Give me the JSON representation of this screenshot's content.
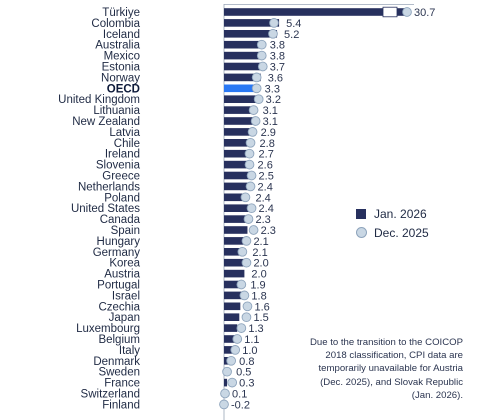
{
  "chart_data": {
    "type": "bar",
    "orientation": "horizontal",
    "categories": [
      "Türkiye",
      "Colombia",
      "Iceland",
      "Australia",
      "Mexico",
      "Estonia",
      "Norway",
      "OECD",
      "United Kingdom",
      "Lithuania",
      "New Zealand",
      "Latvia",
      "Chile",
      "Ireland",
      "Slovenia",
      "Greece",
      "Netherlands",
      "Poland",
      "United States",
      "Canada",
      "Spain",
      "Hungary",
      "Germany",
      "Korea",
      "Austria",
      "Portugal",
      "Israel",
      "Czechia",
      "Japan",
      "Luxembourg",
      "Belgium",
      "Italy",
      "Denmark",
      "Sweden",
      "France",
      "Switzerland",
      "Finland"
    ],
    "highlight": "OECD",
    "series": [
      {
        "name": "Jan. 2026",
        "values": [
          30.7,
          5.4,
          5.2,
          3.8,
          3.8,
          3.7,
          3.6,
          3.3,
          3.2,
          3.1,
          3.1,
          2.9,
          2.8,
          2.7,
          2.6,
          2.5,
          2.4,
          2.4,
          2.4,
          2.3,
          2.3,
          2.1,
          2.1,
          2.0,
          2.0,
          1.9,
          1.8,
          1.6,
          1.5,
          1.3,
          1.1,
          1.0,
          0.8,
          0.5,
          0.3,
          0.1,
          -0.2
        ]
      },
      {
        "name": "Dec. 2025",
        "values": [
          31.0,
          4.9,
          4.8,
          3.7,
          3.7,
          3.8,
          3.2,
          3.2,
          3.4,
          2.9,
          3.1,
          2.8,
          2.6,
          2.5,
          2.5,
          2.7,
          2.6,
          2.1,
          2.7,
          2.4,
          2.9,
          2.2,
          1.8,
          2.2,
          null,
          1.7,
          2.0,
          2.3,
          2.2,
          1.7,
          1.3,
          1.1,
          0.7,
          0.3,
          0.8,
          0.1,
          0.0
        ]
      }
    ],
    "value_labels": [
      "30.7",
      "5.4",
      "5.2",
      "3.8",
      "3.8",
      "3.7",
      "3.6",
      "3.3",
      "3.2",
      "3.1",
      "3.1",
      "2.9",
      "2.8",
      "2.7",
      "2.6",
      "2.5",
      "2.4",
      "2.4",
      "2.4",
      "2.3",
      "2.3",
      "2.1",
      "2.1",
      "2.0",
      "2.0",
      "1.9",
      "1.8",
      "1.6",
      "1.5",
      "1.3",
      "1.1",
      "1.0",
      "0.8",
      "0.5",
      "0.3",
      "0.1",
      "-0.2"
    ],
    "legend_position": "right",
    "colors": {
      "bar": "#27305e",
      "highlight_bar": "#2a78f4",
      "marker_fill": "#c9d7e4",
      "marker_stroke": "#8ea4bc"
    }
  },
  "legend": {
    "items": [
      {
        "label": "Jan. 2026"
      },
      {
        "label": "Dec. 2025"
      }
    ]
  },
  "note": "Due to the transition to the COICOP 2018 classification, CPI data are temporarily unavailable for Austria (Dec. 2025), and Slovak Republic (Jan. 2026)."
}
